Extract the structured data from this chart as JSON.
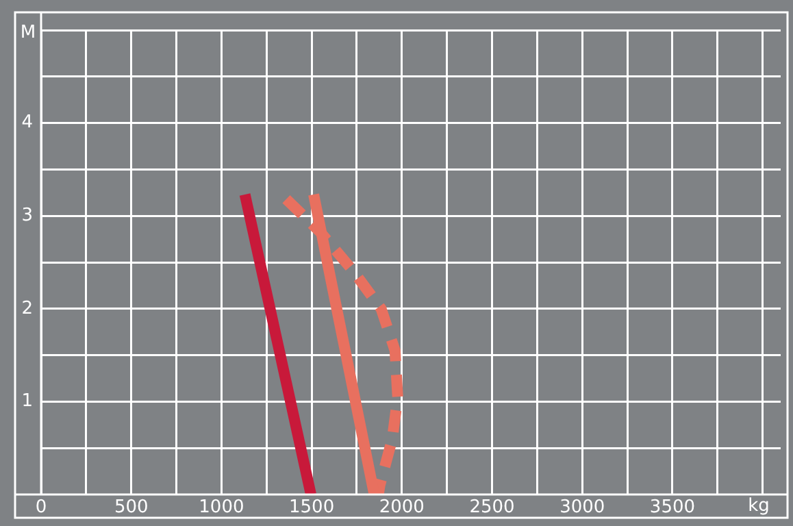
{
  "chart_data": {
    "type": "line",
    "xlabel": "kg",
    "ylabel": "M",
    "xlim": [
      0,
      4100
    ],
    "ylim": [
      0,
      5
    ],
    "xticks": [
      0,
      {
        "value": 250,
        "label": null
      },
      500,
      {
        "value": 750,
        "label": null
      },
      1000,
      {
        "value": 1250,
        "label": null
      },
      1500,
      {
        "value": 1750,
        "label": null
      },
      2000,
      {
        "value": 2250,
        "label": null
      },
      2500,
      {
        "value": 2750,
        "label": null
      },
      3000,
      {
        "value": 3250,
        "label": null
      },
      3500,
      {
        "value": 3750,
        "label": null
      },
      {
        "value": 4000,
        "label": null
      }
    ],
    "yticks": [
      {
        "value": 0.5,
        "label": null
      },
      1,
      {
        "value": 1.5,
        "label": null
      },
      2,
      {
        "value": 2.5,
        "label": null
      },
      3,
      {
        "value": 3.5,
        "label": null
      },
      4,
      {
        "value": 4.5,
        "label": null
      },
      {
        "value": 5,
        "label": null
      }
    ],
    "grid": true,
    "marker": "none",
    "series": [
      {
        "color": "#c8193a",
        "line_style": "solid",
        "x": [
          1130,
          1496
        ],
        "values": [
          3.23,
          0
        ]
      },
      {
        "color": "#e8705f",
        "line_style": "solid",
        "x": [
          1511,
          1847
        ],
        "values": [
          3.23,
          0
        ]
      },
      {
        "color": "#e8705f",
        "line_style": "dashed",
        "x": [
          1359,
          1550,
          1733,
          1885,
          1962,
          1977,
          1947,
          1878,
          1870
        ],
        "values": [
          3.18,
          2.82,
          2.4,
          2.0,
          1.55,
          1.05,
          0.6,
          0.1,
          0
        ]
      }
    ]
  }
}
